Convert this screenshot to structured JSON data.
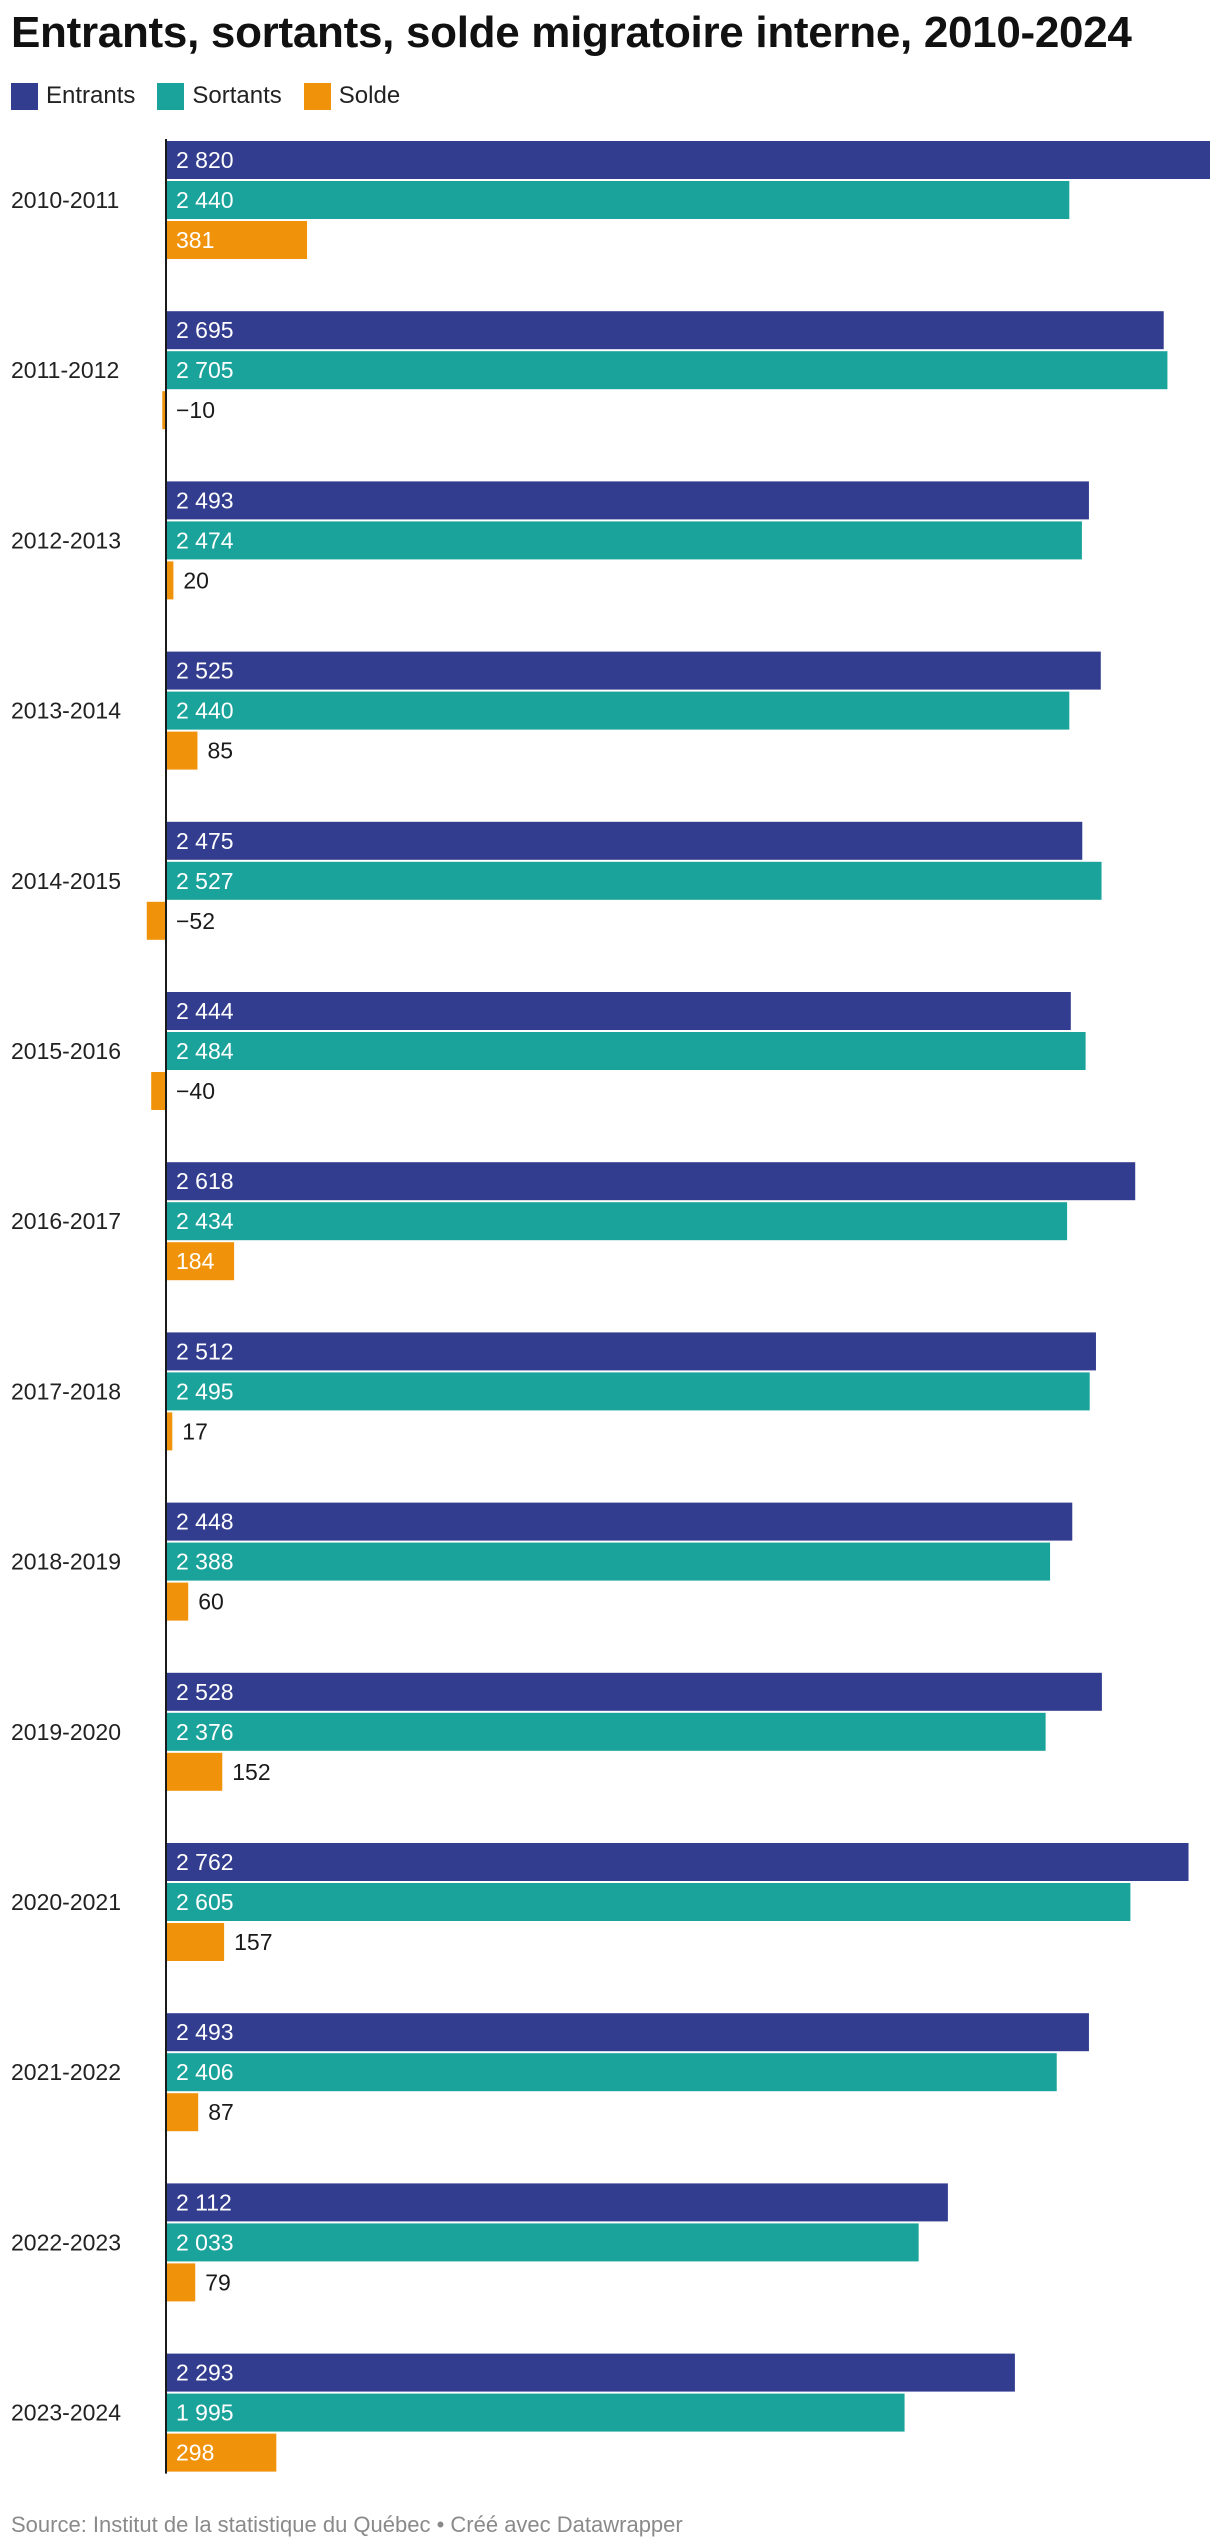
{
  "chart_data": {
    "type": "bar",
    "orientation": "horizontal",
    "title": "Entrants, sortants, solde migratoire interne, 2010-2024",
    "categories": [
      "2010-2011",
      "2011-2012",
      "2012-2013",
      "2013-2014",
      "2014-2015",
      "2015-2016",
      "2016-2017",
      "2017-2018",
      "2018-2019",
      "2019-2020",
      "2020-2021",
      "2021-2022",
      "2022-2023",
      "2023-2024"
    ],
    "series": [
      {
        "name": "Entrants",
        "color": "#333d8f",
        "values": [
          2820,
          2695,
          2493,
          2525,
          2475,
          2444,
          2618,
          2512,
          2448,
          2528,
          2762,
          2493,
          2112,
          2293
        ],
        "labels": [
          "2 820",
          "2 695",
          "2 493",
          "2 525",
          "2 475",
          "2 444",
          "2 618",
          "2 512",
          "2 448",
          "2 528",
          "2 762",
          "2 493",
          "2 112",
          "2 293"
        ]
      },
      {
        "name": "Sortants",
        "color": "#1aa39b",
        "values": [
          2440,
          2705,
          2474,
          2440,
          2527,
          2484,
          2434,
          2495,
          2388,
          2376,
          2605,
          2406,
          2033,
          1995
        ],
        "labels": [
          "2 440",
          "2 705",
          "2 474",
          "2 440",
          "2 527",
          "2 484",
          "2 434",
          "2 495",
          "2 388",
          "2 376",
          "2 605",
          "2 406",
          "2 033",
          "1 995"
        ]
      },
      {
        "name": "Solde",
        "color": "#f0930a",
        "values": [
          381,
          -10,
          20,
          85,
          -52,
          -40,
          184,
          17,
          60,
          152,
          157,
          87,
          79,
          298
        ],
        "labels": [
          "381",
          "−10",
          "20",
          "85",
          "−52",
          "−40",
          "184",
          "17",
          "60",
          "152",
          "157",
          "87",
          "79",
          "298"
        ]
      }
    ],
    "legend": "top-left",
    "grid": false
  },
  "footer": {
    "source": "Source: Institut de la statistique du Québec • Créé avec Datawrapper"
  }
}
